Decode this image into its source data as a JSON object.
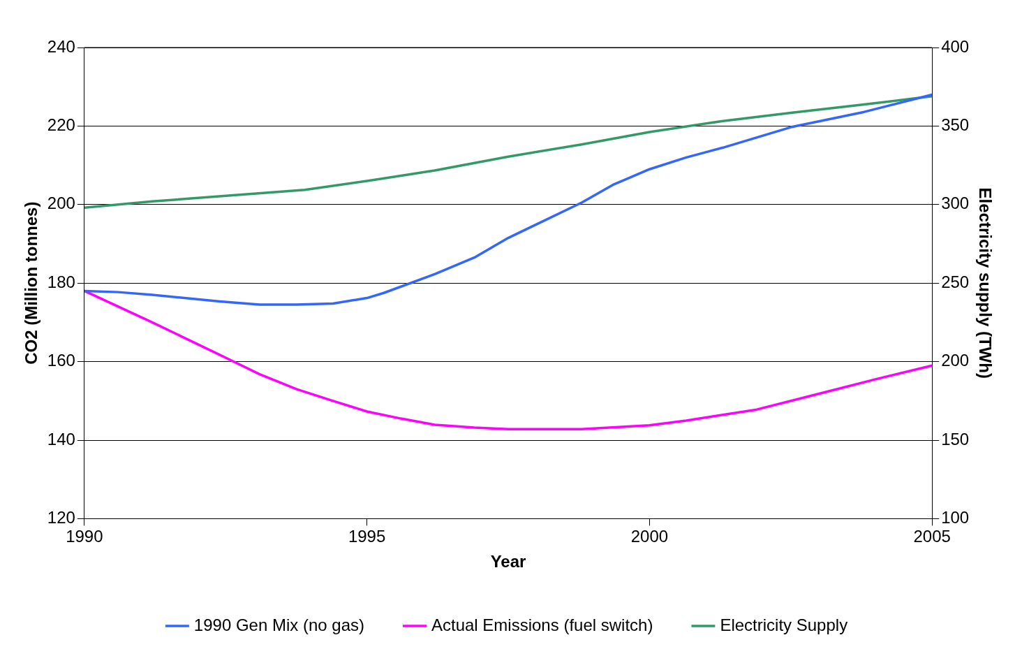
{
  "chart_data": {
    "type": "line",
    "xlabel": "Year",
    "ylabel": "CO2 (Million tonnes)",
    "y2label": "Electricity supply (TWh)",
    "xlim": [
      1990,
      2005
    ],
    "xticks": [
      1990,
      1995,
      2000,
      2005
    ],
    "ylim": [
      120,
      240
    ],
    "yticks": [
      120,
      140,
      160,
      180,
      200,
      220,
      240
    ],
    "y2lim": [
      100,
      400
    ],
    "y2ticks": [
      100,
      150,
      200,
      250,
      300,
      350,
      400
    ],
    "grid": "y",
    "legend": "bottom",
    "marker": "none",
    "line_style": "solid",
    "series": [
      {
        "name": "1990 Gen Mix (no gas)",
        "color": "#3366ff",
        "x": [
          1990,
          1990.6,
          1991.2,
          1992.4,
          1993.1,
          1993.75,
          1994.4,
          1995,
          1995.3,
          1996.2,
          1996.9,
          1997.5,
          1998.8,
          1999.35,
          2000,
          2000.65,
          2001.3,
          2002.5,
          2003.8,
          2005
        ],
        "values": [
          178,
          177.7,
          177,
          175.3,
          174.5,
          174.5,
          174.8,
          176.2,
          177.5,
          182.3,
          186.5,
          191.5,
          200.5,
          205,
          209,
          212,
          214.5,
          219.7,
          223.6,
          228
        ]
      },
      {
        "name": "Actual Emissions (fuel switch)",
        "color": "#ff00ff",
        "x": [
          1990,
          1991.2,
          1992.5,
          1993.1,
          1993.75,
          1994.4,
          1995,
          1995.6,
          1996.2,
          1996.9,
          1997.5,
          1998.8,
          2000,
          2000.65,
          2001.9,
          2003.1,
          2004,
          2005
        ],
        "values": [
          178,
          170,
          161,
          156.8,
          153,
          150,
          147.3,
          145.5,
          143.9,
          143.2,
          142.8,
          142.8,
          143.8,
          145,
          147.8,
          152.2,
          155.5,
          159
        ]
      },
      {
        "name": "Electricity Supply",
        "color": "#339966",
        "axis": "y2",
        "x": [
          1990,
          1991.2,
          1993.9,
          1995,
          1996.2,
          1997.5,
          1998.8,
          2000,
          2001.3,
          2002.5,
          2003.8,
          2005
        ],
        "values": [
          298,
          302,
          309.4,
          315,
          321.7,
          330.5,
          338.3,
          346.2,
          353.2,
          358.4,
          363.7,
          369
        ]
      }
    ]
  }
}
